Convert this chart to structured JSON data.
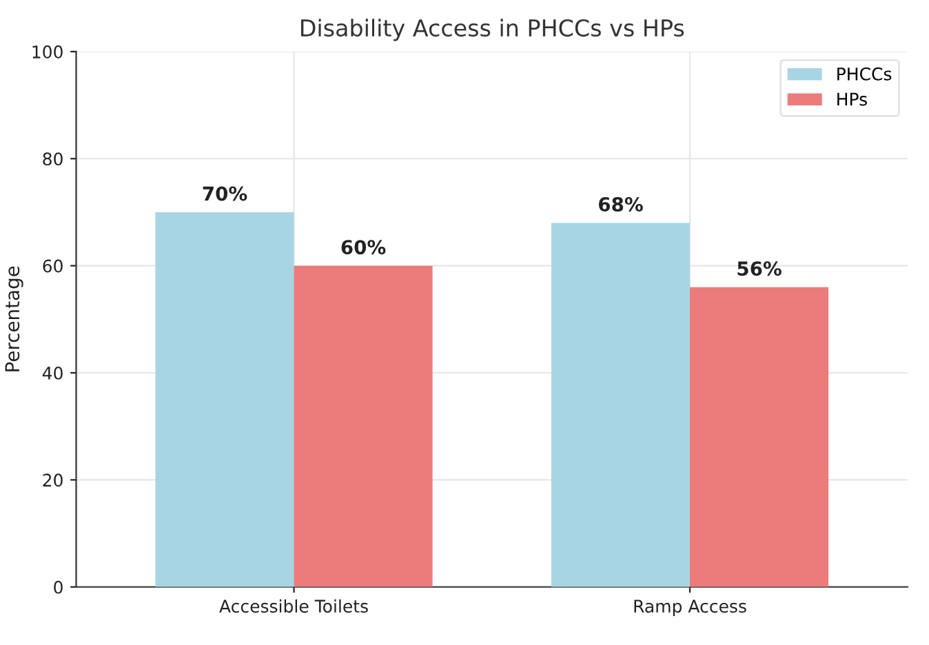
{
  "chart_data": {
    "type": "bar",
    "title": "Disability Access in PHCCs vs HPs",
    "ylabel": "Percentage",
    "categories": [
      "Accessible Toilets",
      "Ramp Access"
    ],
    "series": [
      {
        "name": "PHCCs",
        "color": "#a8d5e3",
        "values": [
          70,
          68
        ],
        "value_labels": [
          "70%",
          "68%"
        ]
      },
      {
        "name": "HPs",
        "color": "#ec7b7b",
        "values": [
          60,
          56
        ],
        "value_labels": [
          "60%",
          "56%"
        ]
      }
    ],
    "ylim": [
      0,
      100
    ],
    "yticks": [
      0,
      20,
      40,
      60,
      80,
      100
    ],
    "grid": true,
    "legend": "top right"
  }
}
